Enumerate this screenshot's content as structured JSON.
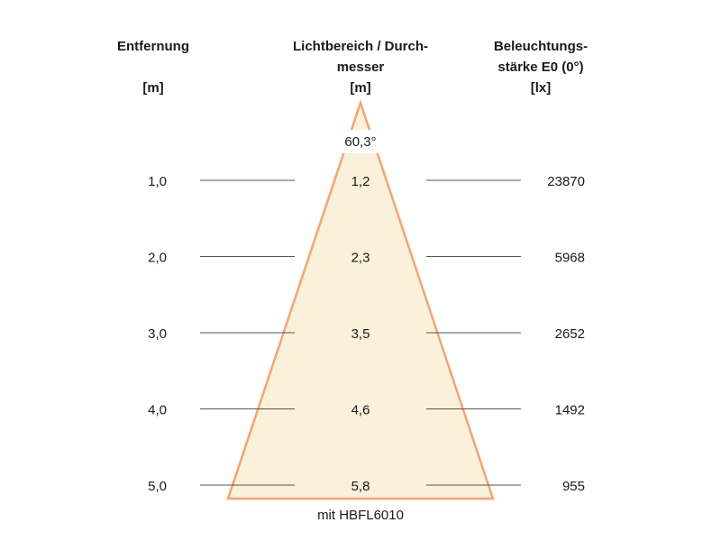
{
  "headers": {
    "distance": {
      "line1": "Entfernung",
      "unit": "[m]"
    },
    "diameter": {
      "line1": "Lichtbereich / Durch-",
      "line2": "messer",
      "unit": "[m]"
    },
    "illuminance": {
      "line1": "Beleuchtungs-",
      "line2": "stärke E0 (0°)",
      "unit": "[lx]"
    }
  },
  "beam_angle": "60,3°",
  "rows": [
    {
      "distance": "1,0",
      "diameter": "1,2",
      "illuminance": "23870"
    },
    {
      "distance": "2,0",
      "diameter": "2,3",
      "illuminance": "5968"
    },
    {
      "distance": "3,0",
      "diameter": "3,5",
      "illuminance": "2652"
    },
    {
      "distance": "4,0",
      "diameter": "4,6",
      "illuminance": "1492"
    },
    {
      "distance": "5,0",
      "diameter": "5,8",
      "illuminance": "955"
    }
  ],
  "footer": "mit HBFL6010",
  "colors": {
    "cone_fill": "#fbf0d9",
    "cone_edge": "#f2a477",
    "guide_line": "#555555"
  }
}
